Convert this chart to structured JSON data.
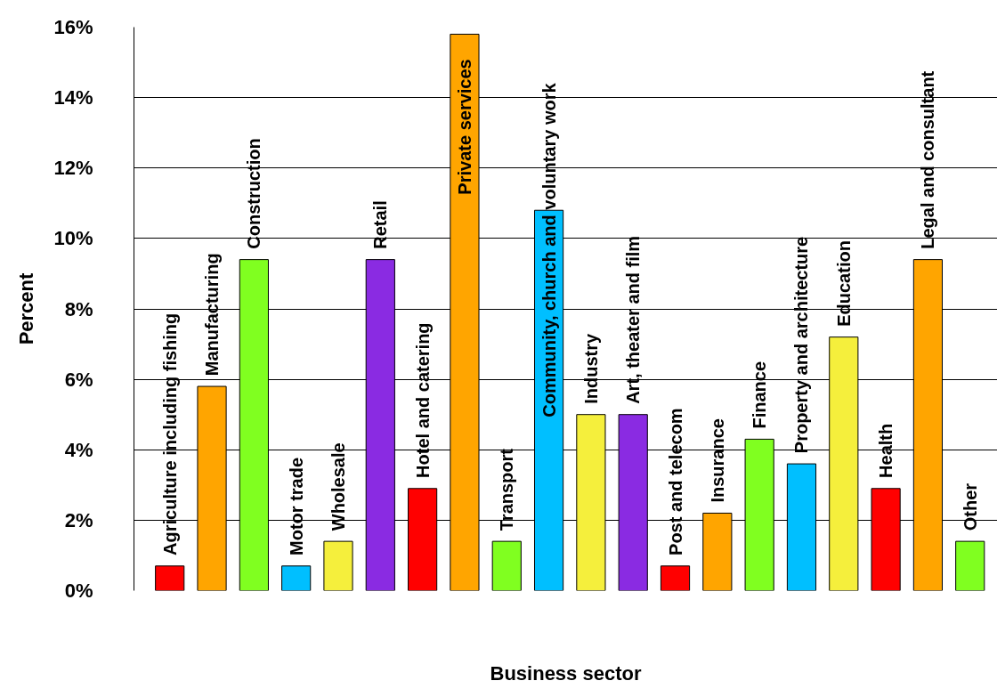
{
  "chart_data": {
    "type": "bar",
    "xlabel": "Business sector",
    "ylabel": "Percent",
    "categories": [
      "Agriculture including fishing",
      "Manufacturing",
      "Construction",
      "Motor trade",
      "Wholesale",
      "Retail",
      "Hotel and catering",
      "Private services",
      "Transport",
      "Community, church and voluntary work",
      "Industry",
      "Art, theater and film",
      "Post and telecom",
      "Insurance",
      "Finance",
      "Property and architecture",
      "Education",
      "Health",
      "Legal and consultant",
      "Other"
    ],
    "values": [
      0.7,
      5.8,
      9.4,
      0.7,
      1.4,
      9.4,
      2.9,
      15.8,
      1.4,
      10.8,
      5.0,
      5.0,
      0.7,
      2.2,
      4.3,
      3.6,
      7.2,
      2.9,
      9.4,
      1.4
    ],
    "colors": [
      "#ff0000",
      "#ffa500",
      "#80ff20",
      "#00bfff",
      "#f5ef3c",
      "#8a2be2",
      "#ff0000",
      "#ffa500",
      "#80ff20",
      "#00bfff",
      "#f5ef3c",
      "#8a2be2",
      "#ff0000",
      "#ffa500",
      "#80ff20",
      "#00bfff",
      "#f5ef3c",
      "#ff0000",
      "#ffa500",
      "#80ff20"
    ],
    "ylim": [
      0,
      16
    ],
    "yticks": [
      {
        "value": 0,
        "label": "0%"
      },
      {
        "value": 2,
        "label": "2%"
      },
      {
        "value": 4,
        "label": "4%"
      },
      {
        "value": 6,
        "label": "6%"
      },
      {
        "value": 8,
        "label": "8%"
      },
      {
        "value": 10,
        "label": "10%"
      },
      {
        "value": 12,
        "label": "12%"
      },
      {
        "value": 14,
        "label": "14%"
      },
      {
        "value": 16,
        "label": "16%"
      }
    ],
    "grid": "y",
    "tick_labels": "y"
  }
}
